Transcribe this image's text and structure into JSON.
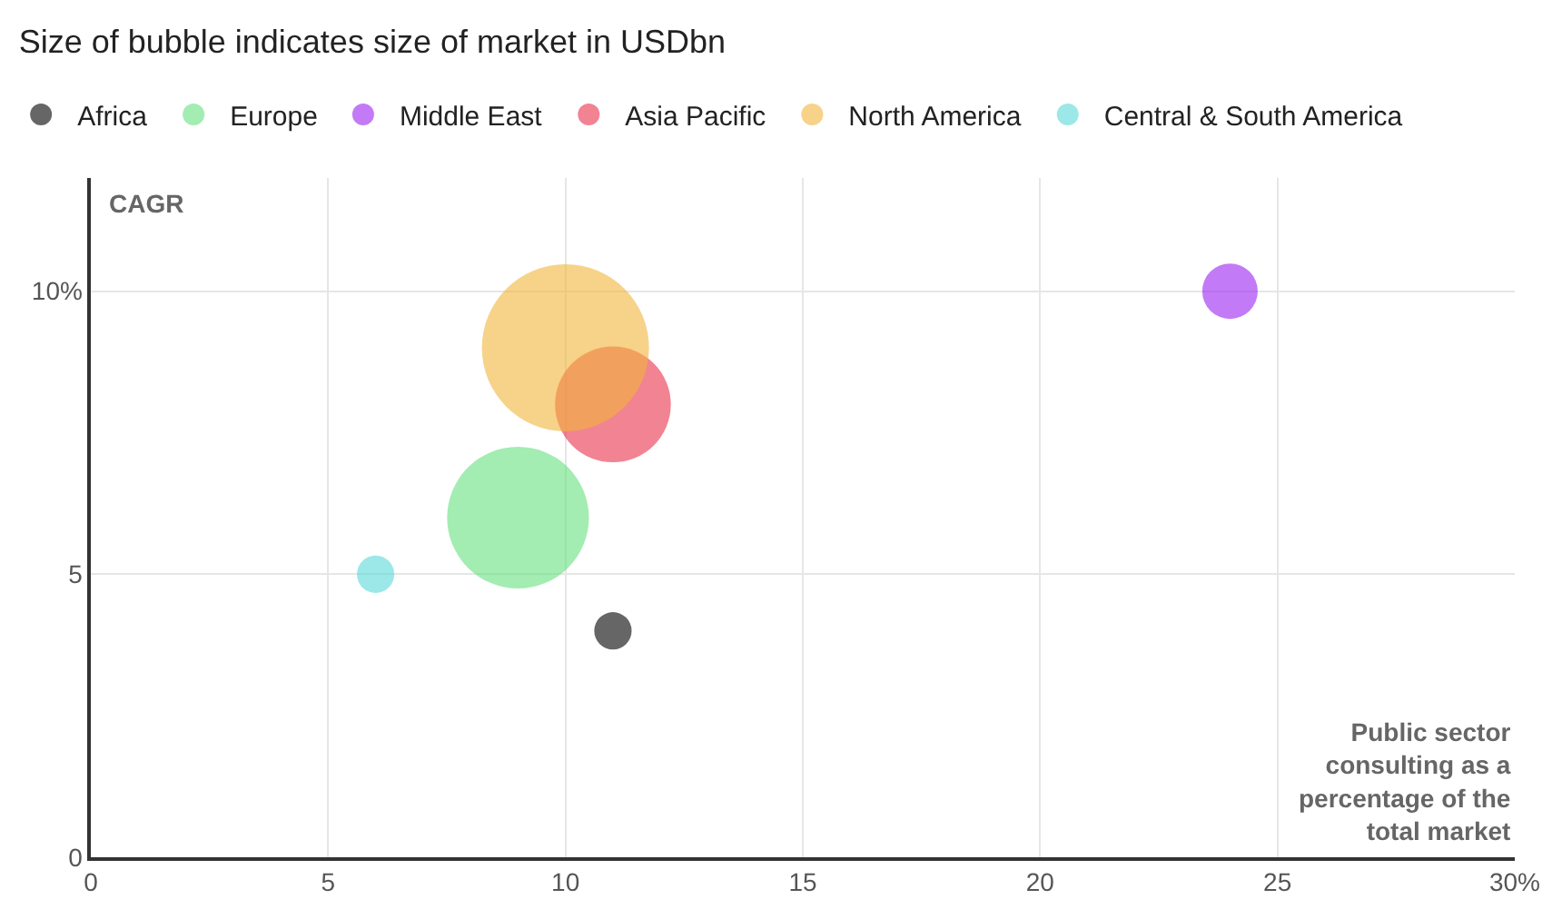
{
  "chart_data": {
    "type": "bubble",
    "title": "Size of bubble indicates size of market in USDbn",
    "ylabel": "CAGR",
    "xlabel": "Public sector consulting as a percentage of the total market",
    "series": [
      {
        "name": "Africa",
        "color": "#000000",
        "x": [
          11
        ],
        "values": [
          4
        ],
        "sizes": [
          0.05
        ]
      },
      {
        "name": "Europe",
        "color": "#66e07f",
        "x": [
          9
        ],
        "values": [
          6
        ],
        "sizes": [
          0.72
        ]
      },
      {
        "name": "Middle East",
        "color": "#9b22f0",
        "x": [
          24
        ],
        "values": [
          10
        ],
        "sizes": [
          0.11
        ]
      },
      {
        "name": "Asia Pacific",
        "color": "#e8304a",
        "x": [
          11
        ],
        "values": [
          8
        ],
        "sizes": [
          0.48
        ]
      },
      {
        "name": "North America",
        "color": "#f2b43a",
        "x": [
          10
        ],
        "values": [
          9
        ],
        "sizes": [
          1
        ]
      },
      {
        "name": "Central & South America",
        "color": "#5ad8d8",
        "x": [
          6
        ],
        "values": [
          5
        ],
        "sizes": [
          0.05
        ]
      }
    ],
    "xlim": [
      0,
      30
    ],
    "xticks": [
      0,
      5,
      10,
      15,
      20,
      25,
      {
        "value": 30,
        "label": "30%"
      }
    ],
    "ylim": [
      0,
      12
    ],
    "yticks": [
      0,
      5,
      {
        "value": 10,
        "label": "10%"
      }
    ],
    "grid": true,
    "legend": "top left",
    "marker": "circle"
  }
}
